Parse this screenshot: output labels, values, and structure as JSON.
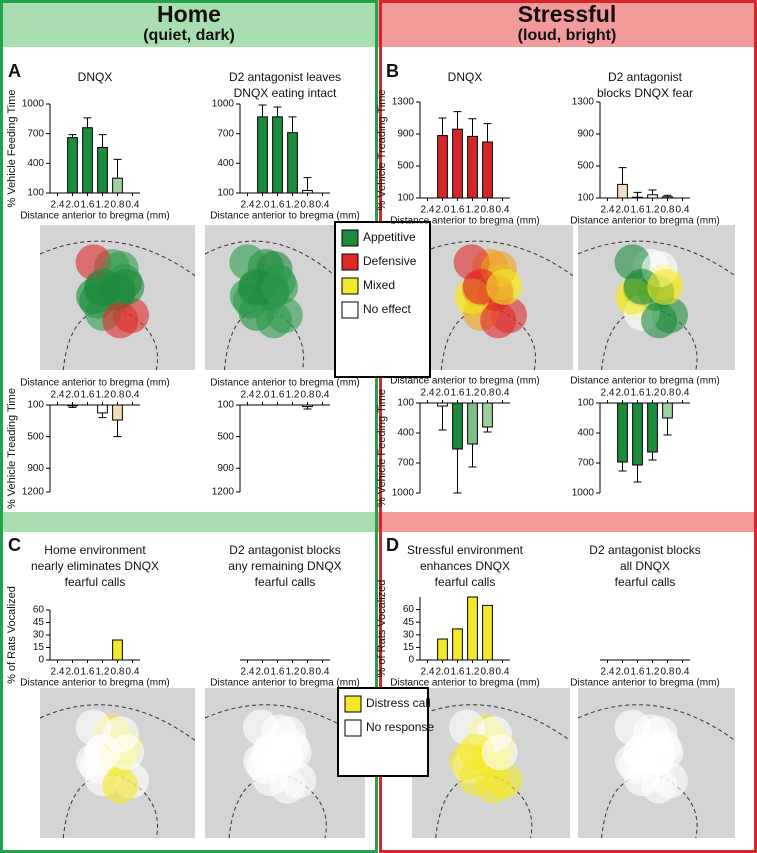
{
  "panels": [
    {
      "title": "Home",
      "subtitle": "(quiet, dark)"
    },
    {
      "title": "Stressful",
      "subtitle": "(loud, bright)"
    }
  ],
  "panel_labels": [
    "A",
    "B",
    "C",
    "D"
  ],
  "legends": [
    {
      "items": [
        {
          "label": "Appetitive",
          "color": "#1e8c3c"
        },
        {
          "label": "Defensive",
          "color": "#e02a2a"
        },
        {
          "label": "Mixed",
          "color": "#f4e82a"
        },
        {
          "label": "No effect",
          "color": "#ffffff"
        }
      ]
    },
    {
      "items": [
        {
          "label": "Distress call",
          "color": "#f4e82a"
        },
        {
          "label": "No response",
          "color": "#ffffff"
        }
      ]
    }
  ],
  "chart_data": [
    {
      "type": "bar",
      "title": [
        "DNQX"
      ],
      "ylabel": "% Vehicle Feeding Time",
      "xlabel": "Distance anterior to bregma (mm)",
      "categories": [
        "2.4",
        "2.0",
        "1.6",
        "1.2",
        "0.8",
        "0.4"
      ],
      "values": [
        null,
        660,
        760,
        560,
        250,
        null
      ],
      "errors": [
        null,
        30,
        100,
        130,
        190,
        null
      ],
      "colors": [
        null,
        "#1e8c3c",
        "#1e8c3c",
        "#1e8c3c",
        "#9fd09f",
        null
      ],
      "ylim": [
        100,
        1000
      ],
      "yticks": [
        100,
        400,
        700,
        1000
      ]
    },
    {
      "type": "bar",
      "title": [
        "D2 antagonist leaves",
        "DNQX eating intact"
      ],
      "xlabel": "Distance anterior to bregma (mm)",
      "categories": [
        "2.4",
        "2.0",
        "1.6",
        "1.2",
        "0.8",
        "0.4"
      ],
      "values": [
        null,
        870,
        870,
        710,
        125,
        null
      ],
      "errors": [
        null,
        120,
        100,
        160,
        130,
        null
      ],
      "colors": [
        null,
        "#1e8c3c",
        "#1e8c3c",
        "#1e8c3c",
        "#ffffff",
        null
      ],
      "ylim": [
        100,
        1000
      ],
      "yticks": [
        100,
        400,
        700,
        1000
      ]
    },
    {
      "type": "bar",
      "ylabel": "% Vehicle Treading Time",
      "xlabel": "Distance anterior to bregma (mm)",
      "inverted": true,
      "categories": [
        "2.4",
        "2.0",
        "1.6",
        "1.2",
        "0.8",
        "0.4"
      ],
      "values": [
        null,
        110,
        null,
        200,
        290,
        null
      ],
      "errors": [
        null,
        20,
        null,
        60,
        210,
        null
      ],
      "colors": [
        null,
        "#ffffff",
        null,
        "#ffffff",
        "#f2dfb8",
        null
      ],
      "ylim": [
        100,
        1200
      ],
      "yticks": [
        100,
        500,
        900,
        1200
      ]
    },
    {
      "type": "bar",
      "xlabel": "Distance anterior to bregma (mm)",
      "inverted": true,
      "categories": [
        "2.4",
        "2.0",
        "1.6",
        "1.2",
        "0.8",
        "0.4"
      ],
      "values": [
        null,
        null,
        null,
        null,
        120,
        null
      ],
      "errors": [
        null,
        null,
        null,
        null,
        30,
        null
      ],
      "colors": [
        null,
        null,
        null,
        null,
        "#ffffff",
        null
      ],
      "ylim": [
        100,
        1200
      ],
      "yticks": [
        100,
        500,
        900,
        1200
      ]
    },
    {
      "type": "bar",
      "title": [
        "DNQX"
      ],
      "ylabel": "% Vehicle Treading Time",
      "xlabel": "Distance anterior to bregma (mm)",
      "categories": [
        "2.4",
        "2.0",
        "1.6",
        "1.2",
        "0.8",
        "0.4"
      ],
      "values": [
        null,
        880,
        960,
        870,
        800,
        null
      ],
      "errors": [
        null,
        220,
        220,
        220,
        230,
        null
      ],
      "colors": [
        null,
        "#d7262a",
        "#d7262a",
        "#d7262a",
        "#d7262a",
        null
      ],
      "ylim": [
        100,
        1300
      ],
      "yticks": [
        100,
        500,
        900,
        1300
      ]
    },
    {
      "type": "bar",
      "title": [
        "D2 antagonist",
        "blocks DNQX fear"
      ],
      "xlabel": "Distance anterior to bregma (mm)",
      "categories": [
        "2.4",
        "2.0",
        "1.6",
        "1.2",
        "0.8",
        "0.4"
      ],
      "values": [
        null,
        270,
        110,
        140,
        115,
        null
      ],
      "errors": [
        null,
        210,
        60,
        60,
        20,
        null
      ],
      "colors": [
        null,
        "#f7e0bf",
        "#ffffff",
        "#ffffff",
        "#ffffff",
        null
      ],
      "ylim": [
        100,
        1300
      ],
      "yticks": [
        100,
        500,
        900,
        1300
      ]
    },
    {
      "type": "bar",
      "ylabel": "% Vehicle Feeding Time",
      "xlabel": "Distance anterior to bregma (mm)",
      "inverted": true,
      "categories": [
        "2.4",
        "2.0",
        "1.6",
        "1.2",
        "0.8",
        "0.4"
      ],
      "values": [
        null,
        130,
        560,
        510,
        340,
        null
      ],
      "errors": [
        null,
        240,
        440,
        230,
        50,
        null
      ],
      "colors": [
        null,
        "#ffffff",
        "#1e8c3c",
        "#7fbf86",
        "#9fd09f",
        null
      ],
      "ylim": [
        100,
        1000
      ],
      "yticks": [
        100,
        400,
        700,
        1000
      ]
    },
    {
      "type": "bar",
      "xlabel": "Distance anterior to bregma (mm)",
      "inverted": true,
      "categories": [
        "2.4",
        "2.0",
        "1.6",
        "1.2",
        "0.8",
        "0.4"
      ],
      "values": [
        null,
        690,
        720,
        590,
        250,
        null
      ],
      "errors": [
        null,
        90,
        170,
        80,
        170,
        null
      ],
      "colors": [
        null,
        "#1e8c3c",
        "#1e8c3c",
        "#1e8c3c",
        "#9fd09f",
        null
      ],
      "ylim": [
        100,
        1000
      ],
      "yticks": [
        100,
        400,
        700,
        1000
      ]
    },
    {
      "type": "bar",
      "title": [
        "Home environment",
        "nearly eliminates DNQX",
        "fearful calls"
      ],
      "ylabel": "% of Rats Vocalized",
      "xlabel": "Distance anterior to bregma (mm)",
      "categories": [
        "2.4",
        "2.0",
        "1.6",
        "1.2",
        "0.8",
        "0.4"
      ],
      "values": [
        null,
        null,
        null,
        null,
        24,
        null
      ],
      "colors": [
        null,
        null,
        null,
        null,
        "#f4e82a",
        null
      ],
      "ylim": [
        0,
        60
      ],
      "yticks": [
        0,
        15,
        30,
        45,
        60
      ]
    },
    {
      "type": "bar",
      "title": [
        "D2 antagonist blocks",
        "any remaining DNQX",
        "fearful calls"
      ],
      "xlabel": "Distance anterior to bregma (mm)",
      "categories": [
        "2.4",
        "2.0",
        "1.6",
        "1.2",
        "0.8",
        "0.4"
      ]
    },
    {
      "type": "bar",
      "title": [
        "Stressful environment",
        "enhances DNQX",
        "fearful calls"
      ],
      "ylabel": "% of Rats Vocalized",
      "xlabel": "Distance anterior to bregma (mm)",
      "categories": [
        "2.4",
        "2.0",
        "1.6",
        "1.2",
        "0.8",
        "0.4"
      ],
      "values": [
        null,
        25,
        37,
        75,
        65,
        null
      ],
      "colors": [
        null,
        "#f4e82a",
        "#f4e82a",
        "#f4e82a",
        "#f4e82a",
        null
      ],
      "ylim": [
        0,
        75
      ],
      "yticks": [
        0,
        15,
        30,
        45,
        60
      ]
    },
    {
      "type": "bar",
      "title": [
        "D2 antagonist blocks",
        "all DNQX",
        "fearful calls"
      ],
      "xlabel": "Distance anterior to bregma (mm)",
      "categories": [
        "2.4",
        "2.0",
        "1.6",
        "1.2",
        "0.8",
        "0.4"
      ]
    }
  ]
}
